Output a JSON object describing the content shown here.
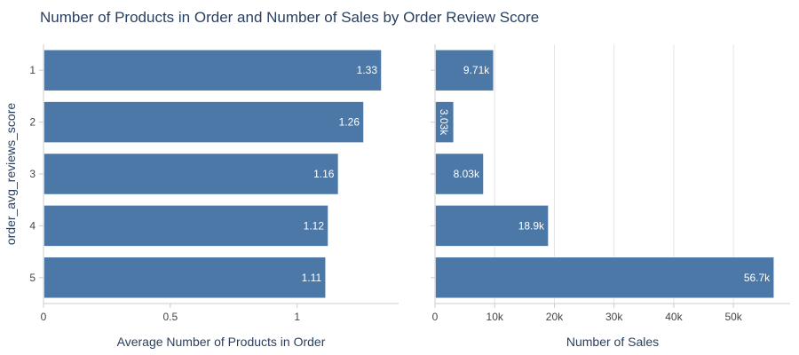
{
  "title": "Number of Products in Order and Number of Sales by Order Review Score",
  "chart_data": [
    {
      "type": "bar",
      "orientation": "horizontal",
      "categories": [
        "1",
        "2",
        "3",
        "4",
        "5"
      ],
      "values": [
        1.33,
        1.26,
        1.16,
        1.12,
        1.11
      ],
      "value_labels": [
        "1.33",
        "1.26",
        "1.16",
        "1.12",
        "1.11"
      ],
      "xlabel": "Average Number of Products in Order",
      "ylabel": "order_avg_reviews_score",
      "xlim": [
        0,
        1.4
      ],
      "xticks": [
        0,
        0.5,
        1
      ],
      "xtick_labels": [
        "0",
        "0.5",
        "1"
      ],
      "grid": false,
      "bar_color": "#4c78a8"
    },
    {
      "type": "bar",
      "orientation": "horizontal",
      "categories": [
        "1",
        "2",
        "3",
        "4",
        "5"
      ],
      "values": [
        9710,
        3030,
        8030,
        18900,
        56700
      ],
      "value_labels": [
        "9.71k",
        "3.03k",
        "8.03k",
        "18.9k",
        "56.7k"
      ],
      "xlabel": "Number of Sales",
      "ylabel": "",
      "xlim": [
        0,
        59500
      ],
      "xticks": [
        0,
        10000,
        20000,
        30000,
        40000,
        50000
      ],
      "xtick_labels": [
        "0",
        "10k",
        "20k",
        "30k",
        "40k",
        "50k"
      ],
      "grid": true,
      "bar_color": "#4c78a8"
    }
  ]
}
